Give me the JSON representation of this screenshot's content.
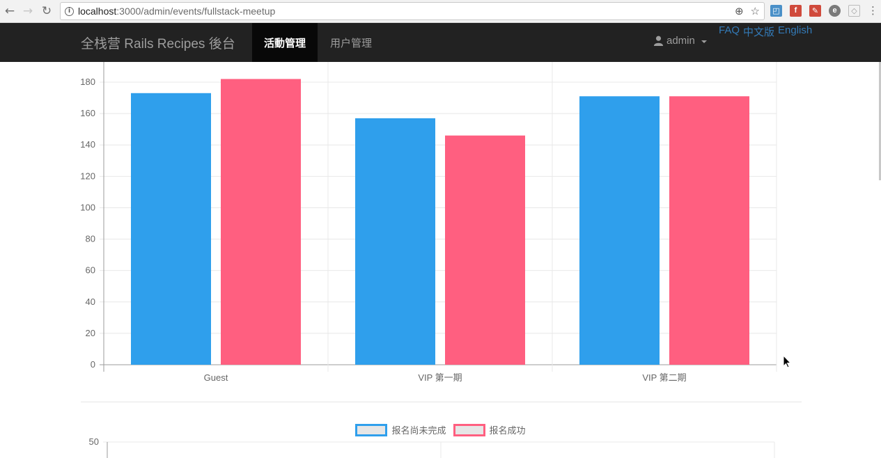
{
  "browser": {
    "url_host": "localhost",
    "url_path": ":3000/admin/events/fullstack-meetup",
    "extensions": [
      "screenshot-icon",
      "flash-icon",
      "feed-icon",
      "evernote-icon",
      "shield-icon"
    ]
  },
  "navbar": {
    "brand": "全栈营 Rails Recipes 後台",
    "items": [
      {
        "label": "活動管理",
        "active": true
      },
      {
        "label": "用户管理",
        "active": false
      }
    ],
    "user": "admin",
    "lang_links": [
      "FAQ",
      "中文版",
      "English"
    ]
  },
  "colors": {
    "series_blue": "#2f9fec",
    "series_pink": "#ff5f80",
    "grid": "#e8e8e8",
    "axis": "#9b9b9b",
    "tick_text": "#666666"
  },
  "chart_data": [
    {
      "type": "bar",
      "categories": [
        "Guest",
        "VIP 第一期",
        "VIP 第二期"
      ],
      "series": [
        {
          "name": "报名尚未完成",
          "values": [
            173,
            157,
            171
          ]
        },
        {
          "name": "报名成功",
          "values": [
            182,
            146,
            171
          ]
        }
      ],
      "ylim": [
        0,
        190
      ],
      "yticks": [
        0,
        20,
        40,
        60,
        80,
        100,
        120,
        140,
        160,
        180
      ],
      "grid": true,
      "legend": "bottom"
    },
    {
      "type": "bar",
      "legend_entries": [
        "报名尚未完成",
        "报名成功"
      ],
      "legend": "top",
      "yticks_visible": [
        50
      ],
      "grid": true
    }
  ]
}
